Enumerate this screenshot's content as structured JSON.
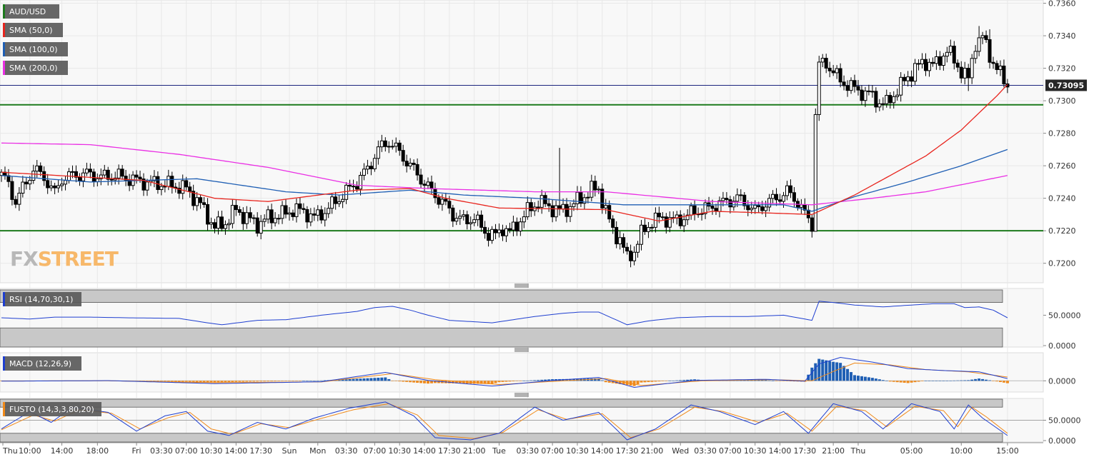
{
  "symbol": "AUD/USD",
  "brand": {
    "fx": "FX",
    "street": "STREET"
  },
  "current_price_label": "0.73095",
  "colors": {
    "background": "#f8f8f8",
    "grid": "#e8e8e8",
    "candle": "#000000",
    "sma50": "#e8251e",
    "sma100": "#1f5fb4",
    "sma200": "#ea2fe4",
    "level": "#1d7a1d",
    "price_line": "#1a237e",
    "rsi": "#1f3fd0",
    "macd": "#1f3fd0",
    "signal": "#f08a1a",
    "hist_pos": "#1f5fb4",
    "hist_neg": "#f08a1a",
    "fusto_k": "#1f3fd0",
    "fusto_d": "#f08a1a",
    "brand_fx": "#b8b8b8",
    "brand_street": "#f7b86a"
  },
  "indicators": [
    {
      "label": "SMA (50,0)",
      "color": "#e8251e"
    },
    {
      "label": "SMA (100,0)",
      "color": "#1f5fb4"
    },
    {
      "label": "SMA (200,0)",
      "color": "#ea2fe4"
    }
  ],
  "chart_data": [
    {
      "type": "candlestick",
      "title": "AUD/USD",
      "ylim": [
        0.7188,
        0.7362
      ],
      "y_ticks": [
        "0.7360",
        "0.7340",
        "0.7320",
        "0.7300",
        "0.7280",
        "0.7260",
        "0.7240",
        "0.7220",
        "0.7200"
      ],
      "x_tick_labels": [
        "Thu",
        "10:00",
        "14:00",
        "18:00",
        "Fri",
        "03:30",
        "07:00",
        "10:30",
        "14:00",
        "17:30",
        "Sun",
        "Mon",
        "03:30",
        "07:00",
        "10:30",
        "14:00",
        "17:30",
        "21:00",
        "Tue",
        "03:30",
        "07:00",
        "10:30",
        "14:00",
        "17:30",
        "21:00",
        "Wed",
        "03:30",
        "07:00",
        "10:30",
        "14:00",
        "17:30",
        "21:00",
        "Thu",
        "05:00",
        "10:00",
        "15:00"
      ],
      "key_points": [
        [
          0,
          0.7255
        ],
        [
          2,
          0.7248
        ],
        [
          4,
          0.7238
        ],
        [
          6,
          0.7246
        ],
        [
          9,
          0.7258
        ],
        [
          12,
          0.7253
        ],
        [
          15,
          0.7243
        ],
        [
          17,
          0.7252
        ],
        [
          20,
          0.7254
        ],
        [
          24,
          0.7255
        ],
        [
          28,
          0.7253
        ],
        [
          32,
          0.7254
        ],
        [
          36,
          0.7252
        ],
        [
          40,
          0.725
        ],
        [
          44,
          0.7249
        ],
        [
          48,
          0.7248
        ],
        [
          52,
          0.7246
        ],
        [
          56,
          0.7236
        ],
        [
          60,
          0.7222
        ],
        [
          63,
          0.7225
        ],
        [
          66,
          0.7233
        ],
        [
          69,
          0.7228
        ],
        [
          72,
          0.7224
        ],
        [
          75,
          0.7228
        ],
        [
          79,
          0.723
        ],
        [
          82,
          0.7233
        ],
        [
          85,
          0.7232
        ],
        [
          88,
          0.7228
        ],
        [
          91,
          0.7232
        ],
        [
          94,
          0.7238
        ],
        [
          97,
          0.7244
        ],
        [
          100,
          0.725
        ],
        [
          103,
          0.7258
        ],
        [
          106,
          0.727
        ],
        [
          109,
          0.7275
        ],
        [
          112,
          0.7268
        ],
        [
          115,
          0.726
        ],
        [
          118,
          0.7252
        ],
        [
          121,
          0.7244
        ],
        [
          124,
          0.7238
        ],
        [
          127,
          0.723
        ],
        [
          130,
          0.7226
        ],
        [
          133,
          0.7228
        ],
        [
          135,
          0.7222
        ],
        [
          137,
          0.7218
        ],
        [
          139,
          0.7217
        ],
        [
          141,
          0.7222
        ],
        [
          143,
          0.7219
        ],
        [
          145,
          0.7224
        ],
        [
          148,
          0.7232
        ],
        [
          151,
          0.7238
        ],
        [
          154,
          0.7235
        ],
        [
          157,
          0.7232
        ],
        [
          160,
          0.7235
        ],
        [
          163,
          0.724
        ],
        [
          166,
          0.7245
        ],
        [
          168,
          0.7246
        ],
        [
          170,
          0.7232
        ],
        [
          172,
          0.722
        ],
        [
          174,
          0.7215
        ],
        [
          176,
          0.7203
        ],
        [
          178,
          0.7208
        ],
        [
          180,
          0.7218
        ],
        [
          183,
          0.7226
        ],
        [
          186,
          0.7228
        ],
        [
          189,
          0.7226
        ],
        [
          192,
          0.7228
        ],
        [
          195,
          0.7232
        ],
        [
          198,
          0.7233
        ],
        [
          201,
          0.7236
        ],
        [
          204,
          0.7238
        ],
        [
          207,
          0.724
        ],
        [
          210,
          0.7236
        ],
        [
          212,
          0.7232
        ],
        [
          215,
          0.7237
        ],
        [
          218,
          0.724
        ],
        [
          221,
          0.7244
        ],
        [
          224,
          0.7238
        ],
        [
          226,
          0.723
        ],
        [
          228,
          0.7224
        ],
        [
          229,
          0.7292
        ],
        [
          230,
          0.7322
        ],
        [
          232,
          0.7323
        ],
        [
          234,
          0.7318
        ],
        [
          236,
          0.7312
        ],
        [
          238,
          0.731
        ],
        [
          241,
          0.7306
        ],
        [
          244,
          0.7304
        ],
        [
          247,
          0.7299
        ],
        [
          249,
          0.7298
        ],
        [
          251,
          0.7304
        ],
        [
          254,
          0.7312
        ],
        [
          257,
          0.732
        ],
        [
          260,
          0.7324
        ],
        [
          263,
          0.7322
        ],
        [
          266,
          0.7332
        ],
        [
          268,
          0.7324
        ],
        [
          271,
          0.7316
        ],
        [
          272,
          0.7313
        ],
        [
          274,
          0.7336
        ],
        [
          276,
          0.7339
        ],
        [
          278,
          0.7328
        ],
        [
          280,
          0.732
        ],
        [
          282,
          0.7312
        ],
        [
          283,
          0.731
        ]
      ],
      "sma50": [
        [
          0,
          0.7256
        ],
        [
          40,
          0.7251
        ],
        [
          60,
          0.724
        ],
        [
          75,
          0.7238
        ],
        [
          100,
          0.7245
        ],
        [
          115,
          0.7246
        ],
        [
          125,
          0.724
        ],
        [
          140,
          0.7234
        ],
        [
          170,
          0.7233
        ],
        [
          185,
          0.7226
        ],
        [
          200,
          0.7232
        ],
        [
          215,
          0.7231
        ],
        [
          228,
          0.723
        ],
        [
          240,
          0.7242
        ],
        [
          250,
          0.7254
        ],
        [
          260,
          0.7266
        ],
        [
          270,
          0.7282
        ],
        [
          280,
          0.7303
        ],
        [
          283,
          0.731
        ]
      ],
      "sma100": [
        [
          0,
          0.7254
        ],
        [
          25,
          0.725
        ],
        [
          55,
          0.7252
        ],
        [
          80,
          0.7244
        ],
        [
          95,
          0.7242
        ],
        [
          115,
          0.7245
        ],
        [
          130,
          0.7242
        ],
        [
          150,
          0.724
        ],
        [
          175,
          0.7236
        ],
        [
          200,
          0.7236
        ],
        [
          220,
          0.7236
        ],
        [
          228,
          0.7232
        ],
        [
          240,
          0.7241
        ],
        [
          255,
          0.725
        ],
        [
          270,
          0.726
        ],
        [
          283,
          0.727
        ]
      ],
      "sma200": [
        [
          0,
          0.7274
        ],
        [
          25,
          0.7273
        ],
        [
          50,
          0.7267
        ],
        [
          75,
          0.7259
        ],
        [
          100,
          0.7248
        ],
        [
          120,
          0.7246
        ],
        [
          150,
          0.7244
        ],
        [
          170,
          0.7244
        ],
        [
          185,
          0.7241
        ],
        [
          200,
          0.7238
        ],
        [
          228,
          0.7236
        ],
        [
          245,
          0.724
        ],
        [
          260,
          0.7244
        ],
        [
          283,
          0.7254
        ]
      ]
    },
    {
      "type": "line",
      "title": "RSI (14,70,30,1)",
      "ylim": [
        0,
        92
      ],
      "y_ticks": [
        "50.0000",
        "0.0000"
      ],
      "overbought": 70,
      "oversold": 30,
      "values": [
        [
          0,
          46
        ],
        [
          8,
          44
        ],
        [
          15,
          47
        ],
        [
          25,
          47
        ],
        [
          35,
          46
        ],
        [
          50,
          45
        ],
        [
          58,
          38
        ],
        [
          62,
          35
        ],
        [
          72,
          42
        ],
        [
          80,
          43
        ],
        [
          90,
          50
        ],
        [
          100,
          56
        ],
        [
          105,
          62
        ],
        [
          110,
          64
        ],
        [
          115,
          58
        ],
        [
          120,
          50
        ],
        [
          126,
          42
        ],
        [
          132,
          40
        ],
        [
          138,
          38
        ],
        [
          144,
          43
        ],
        [
          150,
          48
        ],
        [
          158,
          53
        ],
        [
          163,
          55
        ],
        [
          168,
          55
        ],
        [
          172,
          45
        ],
        [
          176,
          35
        ],
        [
          182,
          41
        ],
        [
          190,
          46
        ],
        [
          200,
          48
        ],
        [
          210,
          48
        ],
        [
          220,
          50
        ],
        [
          226,
          44
        ],
        [
          228,
          42
        ],
        [
          230,
          72
        ],
        [
          234,
          70
        ],
        [
          240,
          66
        ],
        [
          248,
          63
        ],
        [
          256,
          66
        ],
        [
          262,
          68
        ],
        [
          268,
          68
        ],
        [
          271,
          62
        ],
        [
          275,
          63
        ],
        [
          279,
          58
        ],
        [
          283,
          46
        ]
      ]
    },
    {
      "type": "line",
      "title": "MACD (12,26,9)",
      "ylim": [
        -0.0006,
        0.0015
      ],
      "y_ticks": [
        "0.0000"
      ],
      "macd": [
        [
          0,
          -2e-05
        ],
        [
          30,
          1e-05
        ],
        [
          60,
          -0.00015
        ],
        [
          90,
          -5e-05
        ],
        [
          108,
          0.00045
        ],
        [
          120,
          2e-05
        ],
        [
          138,
          -0.00028
        ],
        [
          155,
          2e-05
        ],
        [
          168,
          0.00018
        ],
        [
          178,
          -0.00035
        ],
        [
          195,
          2e-05
        ],
        [
          215,
          8e-05
        ],
        [
          226,
          -2e-05
        ],
        [
          230,
          0.0009
        ],
        [
          236,
          0.00125
        ],
        [
          245,
          0.001
        ],
        [
          255,
          0.00065
        ],
        [
          265,
          0.00055
        ],
        [
          275,
          0.00048
        ],
        [
          283,
          0.00012
        ]
      ],
      "signal": [
        [
          0,
          -1e-05
        ],
        [
          30,
          0.0
        ],
        [
          60,
          -0.0001
        ],
        [
          90,
          -6e-05
        ],
        [
          110,
          0.00038
        ],
        [
          122,
          6e-05
        ],
        [
          140,
          -0.0002
        ],
        [
          158,
          0.0
        ],
        [
          170,
          0.00012
        ],
        [
          180,
          -0.00025
        ],
        [
          197,
          0.0
        ],
        [
          217,
          6e-05
        ],
        [
          228,
          0.0
        ],
        [
          234,
          0.0005
        ],
        [
          240,
          0.00095
        ],
        [
          250,
          0.00085
        ],
        [
          260,
          0.0006
        ],
        [
          272,
          0.00048
        ],
        [
          283,
          0.0002
        ]
      ]
    },
    {
      "type": "line",
      "title": "FUSTO (14,3,3,80,20)",
      "ylim": [
        0,
        100
      ],
      "y_ticks": [
        "50.0000",
        "0.0000"
      ],
      "overbought": 80,
      "oversold": 20,
      "k": [
        [
          0,
          30
        ],
        [
          8,
          70
        ],
        [
          14,
          45
        ],
        [
          20,
          80
        ],
        [
          30,
          68
        ],
        [
          38,
          25
        ],
        [
          46,
          60
        ],
        [
          52,
          70
        ],
        [
          58,
          25
        ],
        [
          64,
          15
        ],
        [
          72,
          45
        ],
        [
          80,
          30
        ],
        [
          88,
          55
        ],
        [
          98,
          78
        ],
        [
          108,
          92
        ],
        [
          116,
          60
        ],
        [
          122,
          10
        ],
        [
          132,
          5
        ],
        [
          140,
          20
        ],
        [
          150,
          80
        ],
        [
          158,
          50
        ],
        [
          168,
          68
        ],
        [
          176,
          5
        ],
        [
          184,
          30
        ],
        [
          194,
          85
        ],
        [
          202,
          70
        ],
        [
          212,
          40
        ],
        [
          220,
          70
        ],
        [
          227,
          20
        ],
        [
          234,
          88
        ],
        [
          242,
          70
        ],
        [
          248,
          30
        ],
        [
          256,
          88
        ],
        [
          264,
          70
        ],
        [
          268,
          30
        ],
        [
          272,
          85
        ],
        [
          276,
          55
        ],
        [
          283,
          15
        ]
      ],
      "d": [
        [
          0,
          28
        ],
        [
          9,
          62
        ],
        [
          15,
          48
        ],
        [
          22,
          74
        ],
        [
          31,
          66
        ],
        [
          39,
          30
        ],
        [
          47,
          56
        ],
        [
          53,
          68
        ],
        [
          59,
          30
        ],
        [
          65,
          18
        ],
        [
          73,
          42
        ],
        [
          81,
          33
        ],
        [
          89,
          52
        ],
        [
          99,
          74
        ],
        [
          109,
          88
        ],
        [
          117,
          62
        ],
        [
          123,
          15
        ],
        [
          133,
          8
        ],
        [
          141,
          22
        ],
        [
          151,
          74
        ],
        [
          159,
          52
        ],
        [
          169,
          65
        ],
        [
          177,
          10
        ],
        [
          185,
          30
        ],
        [
          195,
          80
        ],
        [
          203,
          70
        ],
        [
          213,
          45
        ],
        [
          221,
          66
        ],
        [
          228,
          25
        ],
        [
          235,
          82
        ],
        [
          243,
          72
        ],
        [
          249,
          35
        ],
        [
          257,
          82
        ],
        [
          265,
          72
        ],
        [
          269,
          35
        ],
        [
          273,
          80
        ],
        [
          277,
          58
        ],
        [
          283,
          20
        ]
      ]
    }
  ]
}
